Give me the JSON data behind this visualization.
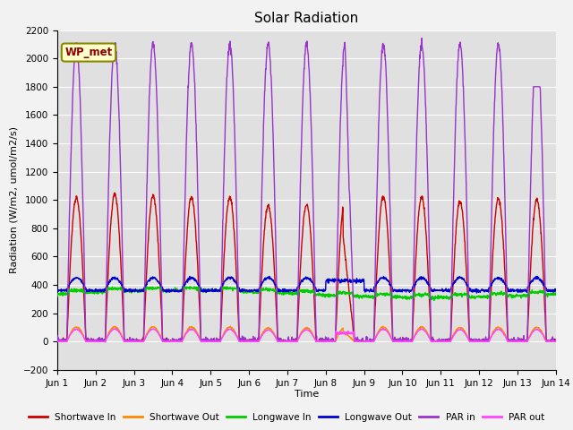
{
  "title": "Solar Radiation",
  "ylabel": "Radiation (W/m2, umol/m2/s)",
  "xlabel": "Time",
  "ylim": [
    -200,
    2200
  ],
  "annotation": "WP_met",
  "x_tick_labels": [
    "Jun 1",
    "Jun 2",
    "Jun 3",
    "Jun 4",
    "Jun 5",
    "Jun 6",
    "Jun 7",
    "Jun 8",
    "Jun 9",
    "Jun 10",
    "Jun 11",
    "Jun 12",
    "Jun 13",
    "Jun 14"
  ],
  "legend_entries": [
    "Shortwave In",
    "Shortwave Out",
    "Longwave In",
    "Longwave Out",
    "PAR in",
    "PAR out"
  ],
  "legend_colors": [
    "#cc0000",
    "#ff8800",
    "#00cc00",
    "#0000cc",
    "#9933cc",
    "#ff44ff"
  ],
  "bg_color": "#e0e0e0",
  "grid_color": "#ffffff",
  "title_fontsize": 11,
  "n_days": 13,
  "pts_per_day": 144
}
